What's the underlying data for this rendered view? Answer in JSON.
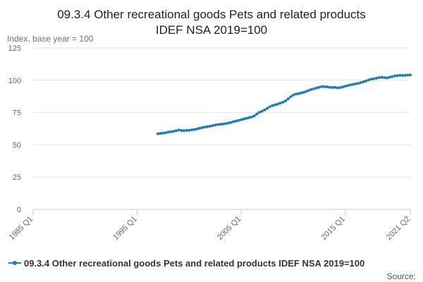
{
  "chart_data": {
    "type": "line",
    "title_line1": "09.3.4 Other recreational goods Pets and related products",
    "title_line2": "IDEF NSA 2019=100",
    "ylabel": "Index, base year = 100",
    "xlabel": "",
    "ylim": [
      0,
      125
    ],
    "y_ticks": [
      0,
      25,
      50,
      75,
      100,
      125
    ],
    "x_tick_labels": [
      "1985 Q1",
      "1995 Q1",
      "2005 Q1",
      "2015 Q1",
      "2021 Q2"
    ],
    "x_domain": [
      "1985 Q1",
      "2021 Q2"
    ],
    "grid": true,
    "legend_position": "bottom",
    "source_label": "Source:",
    "series": [
      {
        "name": "09.3.4 Other recreational goods Pets and related products IDEF NSA 2019=100",
        "color": "#1f7bb6",
        "x": [
          "1997 Q1",
          "1997 Q2",
          "1997 Q3",
          "1997 Q4",
          "1998 Q1",
          "1998 Q2",
          "1998 Q3",
          "1998 Q4",
          "1999 Q1",
          "1999 Q2",
          "1999 Q3",
          "1999 Q4",
          "2000 Q1",
          "2000 Q2",
          "2000 Q3",
          "2000 Q4",
          "2001 Q1",
          "2001 Q2",
          "2001 Q3",
          "2001 Q4",
          "2002 Q1",
          "2002 Q2",
          "2002 Q3",
          "2002 Q4",
          "2003 Q1",
          "2003 Q2",
          "2003 Q3",
          "2003 Q4",
          "2004 Q1",
          "2004 Q2",
          "2004 Q3",
          "2004 Q4",
          "2005 Q1",
          "2005 Q2",
          "2005 Q3",
          "2005 Q4",
          "2006 Q1",
          "2006 Q2",
          "2006 Q3",
          "2006 Q4",
          "2007 Q1",
          "2007 Q2",
          "2007 Q3",
          "2007 Q4",
          "2008 Q1",
          "2008 Q2",
          "2008 Q3",
          "2008 Q4",
          "2009 Q1",
          "2009 Q2",
          "2009 Q3",
          "2009 Q4",
          "2010 Q1",
          "2010 Q2",
          "2010 Q3",
          "2010 Q4",
          "2011 Q1",
          "2011 Q2",
          "2011 Q3",
          "2011 Q4",
          "2012 Q1",
          "2012 Q2",
          "2012 Q3",
          "2012 Q4",
          "2013 Q1",
          "2013 Q2",
          "2013 Q3",
          "2013 Q4",
          "2014 Q1",
          "2014 Q2",
          "2014 Q3",
          "2014 Q4",
          "2015 Q1",
          "2015 Q2",
          "2015 Q3",
          "2015 Q4",
          "2016 Q1",
          "2016 Q2",
          "2016 Q3",
          "2016 Q4",
          "2017 Q1",
          "2017 Q2",
          "2017 Q3",
          "2017 Q4",
          "2018 Q1",
          "2018 Q2",
          "2018 Q3",
          "2018 Q4",
          "2019 Q1",
          "2019 Q2",
          "2019 Q3",
          "2019 Q4",
          "2020 Q1",
          "2020 Q2",
          "2020 Q3",
          "2020 Q4",
          "2021 Q1",
          "2021 Q2"
        ],
        "values": [
          58.5,
          58.8,
          59.1,
          59.4,
          59.8,
          60.1,
          60.4,
          60.9,
          61.4,
          61.1,
          61.0,
          61.2,
          61.3,
          61.5,
          61.8,
          62.3,
          62.8,
          63.3,
          63.7,
          64.1,
          64.4,
          64.9,
          65.3,
          65.7,
          65.9,
          66.1,
          66.4,
          66.8,
          67.3,
          67.9,
          68.4,
          68.9,
          69.5,
          70.0,
          70.5,
          71.0,
          71.5,
          72.4,
          73.8,
          75.2,
          76.0,
          77.0,
          78.3,
          79.5,
          80.4,
          80.9,
          81.5,
          82.3,
          83.0,
          84.0,
          85.5,
          87.2,
          88.6,
          89.3,
          89.7,
          90.1,
          90.6,
          91.4,
          92.2,
          92.8,
          93.4,
          94.1,
          94.6,
          95.1,
          95.0,
          94.8,
          94.6,
          94.4,
          94.5,
          94.1,
          94.3,
          94.8,
          95.3,
          95.9,
          96.4,
          96.8,
          97.2,
          97.6,
          98.2,
          98.8,
          99.4,
          100.2,
          100.8,
          101.2,
          101.6,
          102.0,
          102.3,
          102.0,
          101.8,
          102.3,
          102.8,
          103.3,
          103.5,
          103.8,
          103.7,
          103.9,
          104.0,
          104.1
        ]
      }
    ]
  }
}
